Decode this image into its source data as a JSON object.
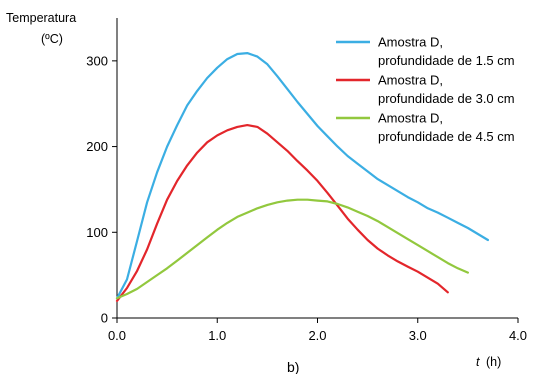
{
  "chart_data": {
    "type": "line",
    "ylabel_line1": "Temperatura",
    "ylabel_line2": "(ºC)",
    "xlabel_var": "t",
    "xlabel_unit": "(h)",
    "panel_label": "b)",
    "xlim": [
      0,
      4
    ],
    "ylim": [
      0,
      350
    ],
    "xticks": [
      0,
      1,
      2,
      3,
      4
    ],
    "xtick_labels": [
      "0.0",
      "1.0",
      "2.0",
      "3.0",
      "4.0"
    ],
    "yticks": [
      0,
      100,
      200,
      300
    ],
    "ytick_labels": [
      "0",
      "100",
      "200",
      "300"
    ],
    "grid": false,
    "legend_position": "top-right",
    "series": [
      {
        "name_line1": "Amostra D,",
        "name_line2": "profundidade de 1.5 cm",
        "color": "#3BAEE3",
        "points": [
          [
            0.0,
            23
          ],
          [
            0.1,
            45
          ],
          [
            0.2,
            90
          ],
          [
            0.3,
            135
          ],
          [
            0.4,
            170
          ],
          [
            0.5,
            200
          ],
          [
            0.6,
            225
          ],
          [
            0.7,
            248
          ],
          [
            0.8,
            265
          ],
          [
            0.9,
            280
          ],
          [
            1.0,
            292
          ],
          [
            1.1,
            302
          ],
          [
            1.2,
            308
          ],
          [
            1.3,
            309
          ],
          [
            1.4,
            305
          ],
          [
            1.5,
            296
          ],
          [
            1.6,
            282
          ],
          [
            1.7,
            267
          ],
          [
            1.8,
            252
          ],
          [
            1.9,
            238
          ],
          [
            2.0,
            224
          ],
          [
            2.1,
            212
          ],
          [
            2.2,
            200
          ],
          [
            2.3,
            189
          ],
          [
            2.4,
            180
          ],
          [
            2.5,
            171
          ],
          [
            2.6,
            162
          ],
          [
            2.7,
            155
          ],
          [
            2.8,
            148
          ],
          [
            2.9,
            141
          ],
          [
            3.0,
            135
          ],
          [
            3.1,
            128
          ],
          [
            3.2,
            123
          ],
          [
            3.3,
            117
          ],
          [
            3.4,
            111
          ],
          [
            3.5,
            105
          ],
          [
            3.6,
            98
          ],
          [
            3.7,
            91
          ]
        ]
      },
      {
        "name_line1": "Amostra D,",
        "name_line2": "profundidade de 3.0 cm",
        "color": "#E3262B",
        "points": [
          [
            0.0,
            20
          ],
          [
            0.1,
            35
          ],
          [
            0.2,
            55
          ],
          [
            0.3,
            80
          ],
          [
            0.4,
            110
          ],
          [
            0.5,
            138
          ],
          [
            0.6,
            160
          ],
          [
            0.7,
            178
          ],
          [
            0.8,
            193
          ],
          [
            0.9,
            205
          ],
          [
            1.0,
            213
          ],
          [
            1.1,
            219
          ],
          [
            1.2,
            223
          ],
          [
            1.3,
            225
          ],
          [
            1.4,
            223
          ],
          [
            1.5,
            215
          ],
          [
            1.6,
            205
          ],
          [
            1.7,
            195
          ],
          [
            1.8,
            183
          ],
          [
            1.9,
            172
          ],
          [
            2.0,
            160
          ],
          [
            2.1,
            146
          ],
          [
            2.2,
            131
          ],
          [
            2.3,
            116
          ],
          [
            2.4,
            103
          ],
          [
            2.5,
            91
          ],
          [
            2.6,
            81
          ],
          [
            2.7,
            73
          ],
          [
            2.8,
            66
          ],
          [
            2.9,
            60
          ],
          [
            3.0,
            54
          ],
          [
            3.1,
            47
          ],
          [
            3.2,
            40
          ],
          [
            3.3,
            30
          ]
        ]
      },
      {
        "name_line1": "Amostra D,",
        "name_line2": "profundidade de 4.5 cm",
        "color": "#92C83E",
        "points": [
          [
            0.0,
            23
          ],
          [
            0.1,
            28
          ],
          [
            0.2,
            34
          ],
          [
            0.3,
            42
          ],
          [
            0.4,
            50
          ],
          [
            0.5,
            58
          ],
          [
            0.6,
            67
          ],
          [
            0.7,
            76
          ],
          [
            0.8,
            85
          ],
          [
            0.9,
            94
          ],
          [
            1.0,
            103
          ],
          [
            1.1,
            111
          ],
          [
            1.2,
            118
          ],
          [
            1.3,
            123
          ],
          [
            1.4,
            128
          ],
          [
            1.5,
            132
          ],
          [
            1.6,
            135
          ],
          [
            1.7,
            137
          ],
          [
            1.8,
            138
          ],
          [
            1.9,
            138
          ],
          [
            2.0,
            137
          ],
          [
            2.1,
            136
          ],
          [
            2.2,
            133
          ],
          [
            2.3,
            129
          ],
          [
            2.4,
            124
          ],
          [
            2.5,
            119
          ],
          [
            2.6,
            113
          ],
          [
            2.7,
            106
          ],
          [
            2.8,
            99
          ],
          [
            2.9,
            92
          ],
          [
            3.0,
            85
          ],
          [
            3.1,
            78
          ],
          [
            3.2,
            71
          ],
          [
            3.3,
            64
          ],
          [
            3.4,
            58
          ],
          [
            3.5,
            53
          ]
        ]
      }
    ]
  }
}
